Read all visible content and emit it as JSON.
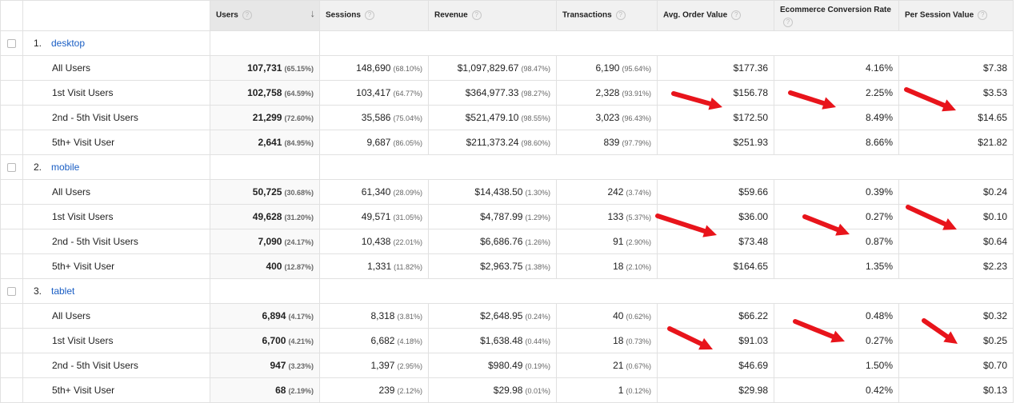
{
  "columns": {
    "users": "Users",
    "sessions": "Sessions",
    "revenue": "Revenue",
    "transactions": "Transactions",
    "aov": "Avg. Order Value",
    "conversion": "Ecommerce Conversion Rate",
    "per_session": "Per Session Value",
    "help_glyph": "?",
    "sort_glyph": "↓"
  },
  "groups": [
    {
      "index": "1.",
      "name": "desktop",
      "rows": [
        {
          "label": "All Users",
          "users": "107,731",
          "users_pct": "(65.15%)",
          "sessions": "148,690",
          "sessions_pct": "(68.10%)",
          "revenue": "$1,097,829.67",
          "revenue_pct": "(98.47%)",
          "transactions": "6,190",
          "transactions_pct": "(95.64%)",
          "aov": "$177.36",
          "conversion": "4.16%",
          "per_session": "$7.38"
        },
        {
          "label": "1st Visit Users",
          "users": "102,758",
          "users_pct": "(64.59%)",
          "sessions": "103,417",
          "sessions_pct": "(64.77%)",
          "revenue": "$364,977.33",
          "revenue_pct": "(98.27%)",
          "transactions": "2,328",
          "transactions_pct": "(93.91%)",
          "aov": "$156.78",
          "conversion": "2.25%",
          "per_session": "$3.53"
        },
        {
          "label": "2nd - 5th Visit Users",
          "users": "21,299",
          "users_pct": "(72.60%)",
          "sessions": "35,586",
          "sessions_pct": "(75.04%)",
          "revenue": "$521,479.10",
          "revenue_pct": "(98.55%)",
          "transactions": "3,023",
          "transactions_pct": "(96.43%)",
          "aov": "$172.50",
          "conversion": "8.49%",
          "per_session": "$14.65"
        },
        {
          "label": "5th+ Visit User",
          "users": "2,641",
          "users_pct": "(84.95%)",
          "sessions": "9,687",
          "sessions_pct": "(86.05%)",
          "revenue": "$211,373.24",
          "revenue_pct": "(98.60%)",
          "transactions": "839",
          "transactions_pct": "(97.79%)",
          "aov": "$251.93",
          "conversion": "8.66%",
          "per_session": "$21.82"
        }
      ]
    },
    {
      "index": "2.",
      "name": "mobile",
      "rows": [
        {
          "label": "All Users",
          "users": "50,725",
          "users_pct": "(30.68%)",
          "sessions": "61,340",
          "sessions_pct": "(28.09%)",
          "revenue": "$14,438.50",
          "revenue_pct": "(1.30%)",
          "transactions": "242",
          "transactions_pct": "(3.74%)",
          "aov": "$59.66",
          "conversion": "0.39%",
          "per_session": "$0.24"
        },
        {
          "label": "1st Visit Users",
          "users": "49,628",
          "users_pct": "(31.20%)",
          "sessions": "49,571",
          "sessions_pct": "(31.05%)",
          "revenue": "$4,787.99",
          "revenue_pct": "(1.29%)",
          "transactions": "133",
          "transactions_pct": "(5.37%)",
          "aov": "$36.00",
          "conversion": "0.27%",
          "per_session": "$0.10"
        },
        {
          "label": "2nd - 5th Visit Users",
          "users": "7,090",
          "users_pct": "(24.17%)",
          "sessions": "10,438",
          "sessions_pct": "(22.01%)",
          "revenue": "$6,686.76",
          "revenue_pct": "(1.26%)",
          "transactions": "91",
          "transactions_pct": "(2.90%)",
          "aov": "$73.48",
          "conversion": "0.87%",
          "per_session": "$0.64"
        },
        {
          "label": "5th+ Visit User",
          "users": "400",
          "users_pct": "(12.87%)",
          "sessions": "1,331",
          "sessions_pct": "(11.82%)",
          "revenue": "$2,963.75",
          "revenue_pct": "(1.38%)",
          "transactions": "18",
          "transactions_pct": "(2.10%)",
          "aov": "$164.65",
          "conversion": "1.35%",
          "per_session": "$2.23"
        }
      ]
    },
    {
      "index": "3.",
      "name": "tablet",
      "rows": [
        {
          "label": "All Users",
          "users": "6,894",
          "users_pct": "(4.17%)",
          "sessions": "8,318",
          "sessions_pct": "(3.81%)",
          "revenue": "$2,648.95",
          "revenue_pct": "(0.24%)",
          "transactions": "40",
          "transactions_pct": "(0.62%)",
          "aov": "$66.22",
          "conversion": "0.48%",
          "per_session": "$0.32"
        },
        {
          "label": "1st Visit Users",
          "users": "6,700",
          "users_pct": "(4.21%)",
          "sessions": "6,682",
          "sessions_pct": "(4.18%)",
          "revenue": "$1,638.48",
          "revenue_pct": "(0.44%)",
          "transactions": "18",
          "transactions_pct": "(0.73%)",
          "aov": "$91.03",
          "conversion": "0.27%",
          "per_session": "$0.25"
        },
        {
          "label": "2nd - 5th Visit Users",
          "users": "947",
          "users_pct": "(3.23%)",
          "sessions": "1,397",
          "sessions_pct": "(2.95%)",
          "revenue": "$980.49",
          "revenue_pct": "(0.19%)",
          "transactions": "21",
          "transactions_pct": "(0.67%)",
          "aov": "$46.69",
          "conversion": "1.50%",
          "per_session": "$0.70"
        },
        {
          "label": "5th+ Visit User",
          "users": "68",
          "users_pct": "(2.19%)",
          "sessions": "239",
          "sessions_pct": "(2.12%)",
          "revenue": "$29.98",
          "revenue_pct": "(0.01%)",
          "transactions": "1",
          "transactions_pct": "(0.12%)",
          "aov": "$29.98",
          "conversion": "0.42%",
          "per_session": "$0.13"
        }
      ]
    }
  ],
  "annotation": {
    "arrow_color": "#e8141b"
  }
}
